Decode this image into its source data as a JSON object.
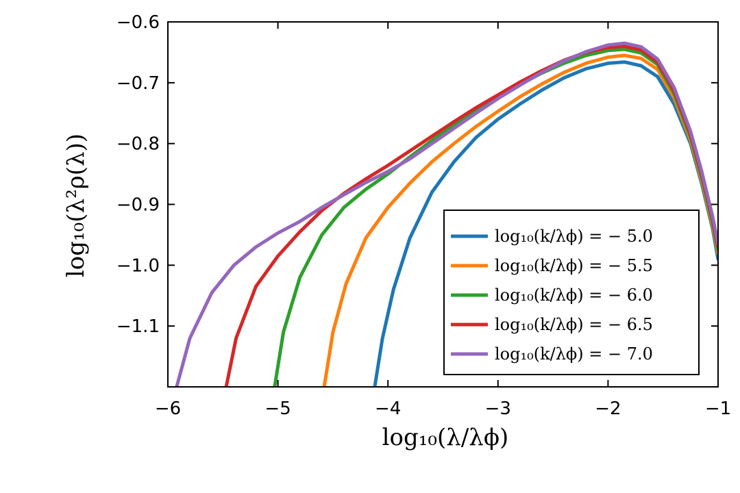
{
  "chart_data": {
    "type": "line",
    "xlabel": "log₁₀(λ/λϕ)",
    "ylabel": "log₁₀(λ²ρ(λ))",
    "xlim": [
      -6,
      -1
    ],
    "ylim": [
      -1.2,
      -0.6
    ],
    "x_ticks": [
      "−6",
      "−5",
      "−4",
      "−3",
      "−2",
      "−1"
    ],
    "y_ticks": [
      "−0.6",
      "−0.7",
      "−0.8",
      "−0.9",
      "−1.0",
      "−1.1"
    ],
    "grid": false,
    "legend_position": "bottom-right",
    "series": [
      {
        "name": "log₁₀(k/λϕ) = − 5.0",
        "color": "#1f77b4",
        "points": [
          [
            -4.12,
            -1.2
          ],
          [
            -4.05,
            -1.12
          ],
          [
            -3.95,
            -1.04
          ],
          [
            -3.8,
            -0.955
          ],
          [
            -3.6,
            -0.88
          ],
          [
            -3.4,
            -0.83
          ],
          [
            -3.2,
            -0.79
          ],
          [
            -3.0,
            -0.76
          ],
          [
            -2.8,
            -0.735
          ],
          [
            -2.6,
            -0.712
          ],
          [
            -2.4,
            -0.692
          ],
          [
            -2.2,
            -0.677
          ],
          [
            -2.0,
            -0.668
          ],
          [
            -1.85,
            -0.666
          ],
          [
            -1.7,
            -0.672
          ],
          [
            -1.55,
            -0.69
          ],
          [
            -1.4,
            -0.735
          ],
          [
            -1.25,
            -0.8
          ],
          [
            -1.15,
            -0.865
          ],
          [
            -1.05,
            -0.94
          ],
          [
            -1.0,
            -0.99
          ]
        ]
      },
      {
        "name": "log₁₀(k/λϕ) = − 5.5",
        "color": "#ff7f0e",
        "points": [
          [
            -4.58,
            -1.2
          ],
          [
            -4.5,
            -1.11
          ],
          [
            -4.38,
            -1.03
          ],
          [
            -4.2,
            -0.955
          ],
          [
            -4.0,
            -0.905
          ],
          [
            -3.8,
            -0.865
          ],
          [
            -3.6,
            -0.83
          ],
          [
            -3.4,
            -0.8
          ],
          [
            -3.2,
            -0.772
          ],
          [
            -3.0,
            -0.747
          ],
          [
            -2.8,
            -0.723
          ],
          [
            -2.6,
            -0.702
          ],
          [
            -2.4,
            -0.683
          ],
          [
            -2.2,
            -0.668
          ],
          [
            -2.0,
            -0.658
          ],
          [
            -1.85,
            -0.655
          ],
          [
            -1.7,
            -0.66
          ],
          [
            -1.55,
            -0.678
          ],
          [
            -1.4,
            -0.725
          ],
          [
            -1.25,
            -0.795
          ],
          [
            -1.15,
            -0.86
          ],
          [
            -1.05,
            -0.935
          ],
          [
            -1.0,
            -0.98
          ]
        ]
      },
      {
        "name": "log₁₀(k/λϕ) = − 6.0",
        "color": "#2ca02c",
        "points": [
          [
            -5.03,
            -1.2
          ],
          [
            -4.95,
            -1.11
          ],
          [
            -4.8,
            -1.02
          ],
          [
            -4.6,
            -0.95
          ],
          [
            -4.4,
            -0.905
          ],
          [
            -4.2,
            -0.875
          ],
          [
            -4.0,
            -0.85
          ],
          [
            -3.8,
            -0.822
          ],
          [
            -3.6,
            -0.795
          ],
          [
            -3.4,
            -0.77
          ],
          [
            -3.2,
            -0.746
          ],
          [
            -3.0,
            -0.724
          ],
          [
            -2.8,
            -0.703
          ],
          [
            -2.6,
            -0.684
          ],
          [
            -2.4,
            -0.668
          ],
          [
            -2.2,
            -0.655
          ],
          [
            -2.0,
            -0.647
          ],
          [
            -1.85,
            -0.645
          ],
          [
            -1.7,
            -0.651
          ],
          [
            -1.55,
            -0.67
          ],
          [
            -1.4,
            -0.718
          ],
          [
            -1.25,
            -0.79
          ],
          [
            -1.15,
            -0.855
          ],
          [
            -1.05,
            -0.93
          ],
          [
            -1.0,
            -0.975
          ]
        ]
      },
      {
        "name": "log₁₀(k/λϕ) = − 6.5",
        "color": "#d62728",
        "points": [
          [
            -5.47,
            -1.2
          ],
          [
            -5.38,
            -1.12
          ],
          [
            -5.2,
            -1.035
          ],
          [
            -5.0,
            -0.985
          ],
          [
            -4.8,
            -0.945
          ],
          [
            -4.6,
            -0.91
          ],
          [
            -4.4,
            -0.882
          ],
          [
            -4.2,
            -0.858
          ],
          [
            -4.0,
            -0.836
          ],
          [
            -3.8,
            -0.812
          ],
          [
            -3.6,
            -0.788
          ],
          [
            -3.4,
            -0.764
          ],
          [
            -3.2,
            -0.741
          ],
          [
            -3.0,
            -0.72
          ],
          [
            -2.8,
            -0.699
          ],
          [
            -2.6,
            -0.68
          ],
          [
            -2.4,
            -0.663
          ],
          [
            -2.2,
            -0.65
          ],
          [
            -2.0,
            -0.642
          ],
          [
            -1.85,
            -0.64
          ],
          [
            -1.7,
            -0.646
          ],
          [
            -1.55,
            -0.666
          ],
          [
            -1.4,
            -0.713
          ],
          [
            -1.25,
            -0.785
          ],
          [
            -1.15,
            -0.85
          ],
          [
            -1.05,
            -0.925
          ],
          [
            -1.0,
            -0.97
          ]
        ]
      },
      {
        "name": "log₁₀(k/λϕ) = − 7.0",
        "color": "#9467bd",
        "points": [
          [
            -5.92,
            -1.2
          ],
          [
            -5.8,
            -1.12
          ],
          [
            -5.6,
            -1.045
          ],
          [
            -5.4,
            -1.0
          ],
          [
            -5.2,
            -0.97
          ],
          [
            -5.0,
            -0.947
          ],
          [
            -4.8,
            -0.928
          ],
          [
            -4.6,
            -0.905
          ],
          [
            -4.4,
            -0.884
          ],
          [
            -4.2,
            -0.864
          ],
          [
            -4.0,
            -0.846
          ],
          [
            -3.8,
            -0.825
          ],
          [
            -3.6,
            -0.8
          ],
          [
            -3.4,
            -0.775
          ],
          [
            -3.2,
            -0.75
          ],
          [
            -3.0,
            -0.726
          ],
          [
            -2.8,
            -0.704
          ],
          [
            -2.6,
            -0.683
          ],
          [
            -2.4,
            -0.664
          ],
          [
            -2.2,
            -0.649
          ],
          [
            -2.0,
            -0.638
          ],
          [
            -1.85,
            -0.635
          ],
          [
            -1.7,
            -0.641
          ],
          [
            -1.55,
            -0.661
          ],
          [
            -1.4,
            -0.708
          ],
          [
            -1.25,
            -0.78
          ],
          [
            -1.15,
            -0.845
          ],
          [
            -1.05,
            -0.92
          ],
          [
            -1.0,
            -0.965
          ]
        ]
      }
    ]
  }
}
